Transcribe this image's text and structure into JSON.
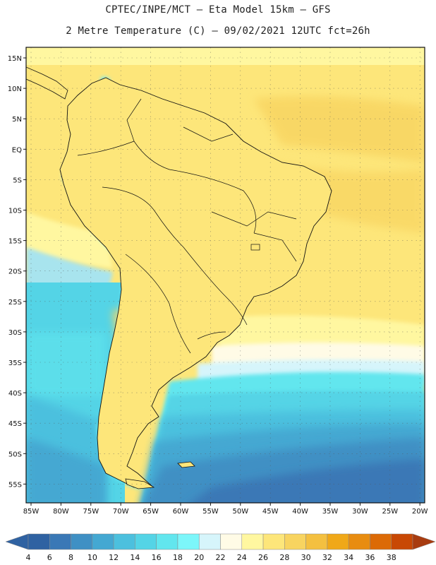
{
  "header": {
    "title_line1": "CPTEC/INPE/MCT –  Eta Model 15km – GFS",
    "title_line2": "2 Metre Temperature (C) – 09/02/2021 12UTC fct=26h"
  },
  "map": {
    "lat_labels": [
      "15N",
      "10N",
      "5N",
      "EQ",
      "5S",
      "10S",
      "15S",
      "20S",
      "25S",
      "30S",
      "35S",
      "40S",
      "45S",
      "50S",
      "55S"
    ],
    "lon_labels": [
      "85W",
      "80W",
      "75W",
      "70W",
      "65W",
      "60W",
      "55W",
      "50W",
      "45W",
      "40W",
      "35W",
      "30W",
      "25W",
      "20W"
    ]
  },
  "legend": {
    "values": [
      "4",
      "6",
      "8",
      "10",
      "12",
      "14",
      "16",
      "18",
      "20",
      "22",
      "24",
      "26",
      "28",
      "30",
      "32",
      "34",
      "36",
      "38"
    ],
    "colors": [
      "#2f62a2",
      "#3a78b6",
      "#3f90c4",
      "#44a8d2",
      "#4cc0de",
      "#54d4e6",
      "#62e6ee",
      "#7cf6fa",
      "#d6f5fb",
      "#fffbe6",
      "#fff7a0",
      "#fde67a",
      "#f8d460",
      "#f4c040",
      "#f0a818",
      "#e88c10",
      "#dc6a06",
      "#c84804",
      "#a83c10"
    ]
  }
}
